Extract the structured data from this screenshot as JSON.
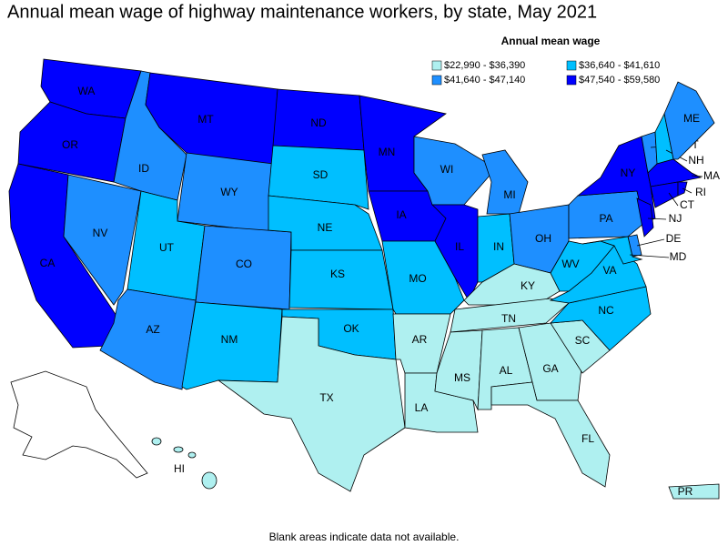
{
  "title": "Annual mean wage of highway maintenance workers, by state, May 2021",
  "legend": {
    "title": "Annual mean wage",
    "items": [
      {
        "label": "$22,990 - $36,390",
        "color": "#aff0f0"
      },
      {
        "label": "$36,640 - $41,610",
        "color": "#00bfff"
      },
      {
        "label": "$41,640 - $47,140",
        "color": "#1e8fff"
      },
      {
        "label": "$47,540 - $59,580",
        "color": "#0000ff"
      }
    ]
  },
  "states": [
    {
      "abbr": "WA",
      "bin": 3
    },
    {
      "abbr": "OR",
      "bin": 3
    },
    {
      "abbr": "CA",
      "bin": 3
    },
    {
      "abbr": "NV",
      "bin": 2
    },
    {
      "abbr": "ID",
      "bin": 2
    },
    {
      "abbr": "MT",
      "bin": 3
    },
    {
      "abbr": "WY",
      "bin": 2
    },
    {
      "abbr": "UT",
      "bin": 1
    },
    {
      "abbr": "AZ",
      "bin": 2
    },
    {
      "abbr": "CO",
      "bin": 2
    },
    {
      "abbr": "NM",
      "bin": 1
    },
    {
      "abbr": "ND",
      "bin": 3
    },
    {
      "abbr": "SD",
      "bin": 1
    },
    {
      "abbr": "NE",
      "bin": 1
    },
    {
      "abbr": "KS",
      "bin": 1
    },
    {
      "abbr": "OK",
      "bin": 1
    },
    {
      "abbr": "TX",
      "bin": 0
    },
    {
      "abbr": "MN",
      "bin": 3
    },
    {
      "abbr": "IA",
      "bin": 3
    },
    {
      "abbr": "MO",
      "bin": 1
    },
    {
      "abbr": "AR",
      "bin": 0
    },
    {
      "abbr": "LA",
      "bin": 0
    },
    {
      "abbr": "WI",
      "bin": 2
    },
    {
      "abbr": "IL",
      "bin": 3
    },
    {
      "abbr": "MI",
      "bin": 2
    },
    {
      "abbr": "IN",
      "bin": 1
    },
    {
      "abbr": "OH",
      "bin": 2
    },
    {
      "abbr": "KY",
      "bin": 0
    },
    {
      "abbr": "TN",
      "bin": 0
    },
    {
      "abbr": "MS",
      "bin": 0
    },
    {
      "abbr": "AL",
      "bin": 0
    },
    {
      "abbr": "GA",
      "bin": 0
    },
    {
      "abbr": "FL",
      "bin": 0
    },
    {
      "abbr": "SC",
      "bin": 0
    },
    {
      "abbr": "NC",
      "bin": 1
    },
    {
      "abbr": "VA",
      "bin": 1
    },
    {
      "abbr": "WV",
      "bin": 1
    },
    {
      "abbr": "PA",
      "bin": 2
    },
    {
      "abbr": "NY",
      "bin": 3
    },
    {
      "abbr": "NJ",
      "bin": 3
    },
    {
      "abbr": "DE",
      "bin": 2
    },
    {
      "abbr": "MD",
      "bin": 1
    },
    {
      "abbr": "VT",
      "bin": 2
    },
    {
      "abbr": "NH",
      "bin": 1
    },
    {
      "abbr": "ME",
      "bin": 2
    },
    {
      "abbr": "MA",
      "bin": 3
    },
    {
      "abbr": "CT",
      "bin": 3
    },
    {
      "abbr": "RI",
      "bin": 3
    },
    {
      "abbr": "HI",
      "bin": 0
    },
    {
      "abbr": "PR",
      "bin": 0
    }
  ],
  "footnote": "Blank areas indicate data not available."
}
